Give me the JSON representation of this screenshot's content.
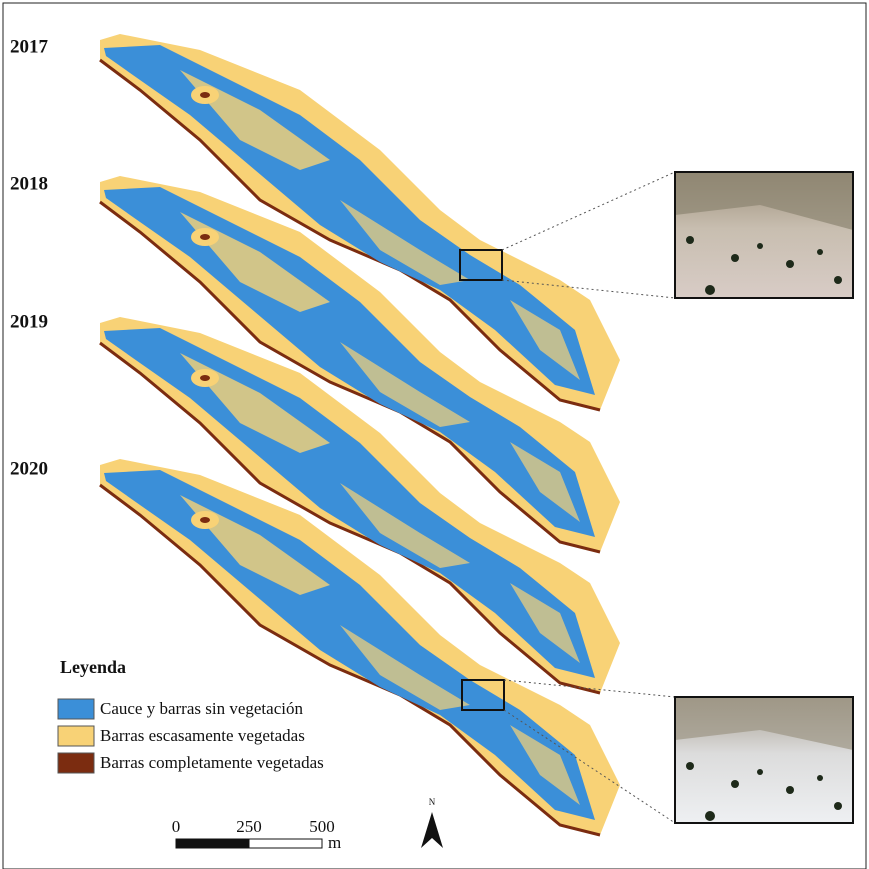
{
  "years": [
    "2017",
    "2018",
    "2019",
    "2020"
  ],
  "legend": {
    "title": "Leyenda",
    "items": [
      {
        "label": "Cauce y barras sin vegetación",
        "color": "#3b8fd8"
      },
      {
        "label": "Barras escasamente vegetadas",
        "color": "#f8d276"
      },
      {
        "label": "Barras completamente vegetadas",
        "color": "#7b2c10"
      }
    ]
  },
  "scale_bar": {
    "ticks": [
      0,
      250,
      500
    ],
    "unit": "m"
  },
  "north_arrow": "N"
}
